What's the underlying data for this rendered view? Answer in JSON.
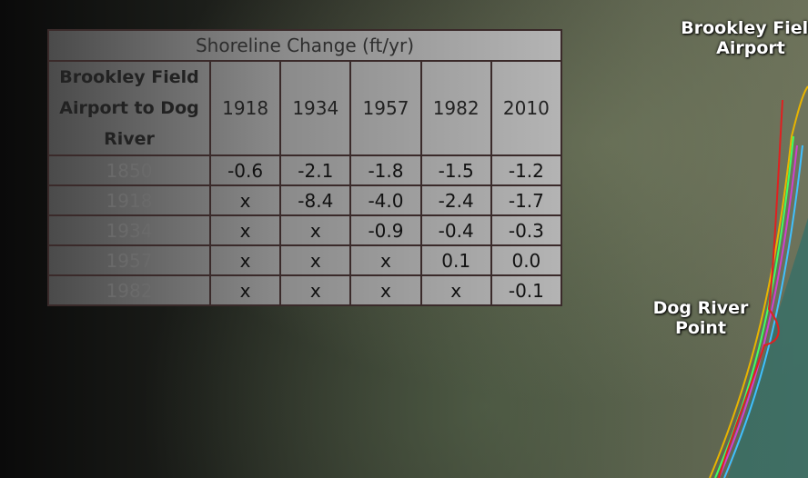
{
  "table": {
    "title": "Shoreline Change (ft/yr)",
    "header": [
      "Brookley Field Airport to Dog River",
      "1918",
      "1934",
      "1957",
      "1982",
      "2010"
    ],
    "rows": [
      [
        "1850",
        "-0.6",
        "-2.1",
        "-1.8",
        "-1.5",
        "-1.2"
      ],
      [
        "1918",
        "x",
        "-8.4",
        "-4.0",
        "-2.4",
        "-1.7"
      ],
      [
        "1934",
        "x",
        "x",
        "-0.9",
        "-0.4",
        "-0.3"
      ],
      [
        "1957",
        "x",
        "x",
        "x",
        "0.1",
        "0.0"
      ],
      [
        "1982",
        "x",
        "x",
        "x",
        "x",
        "-0.1"
      ]
    ]
  },
  "map_labels": [
    "Brookley Field Airport",
    "Dog River Point"
  ]
}
